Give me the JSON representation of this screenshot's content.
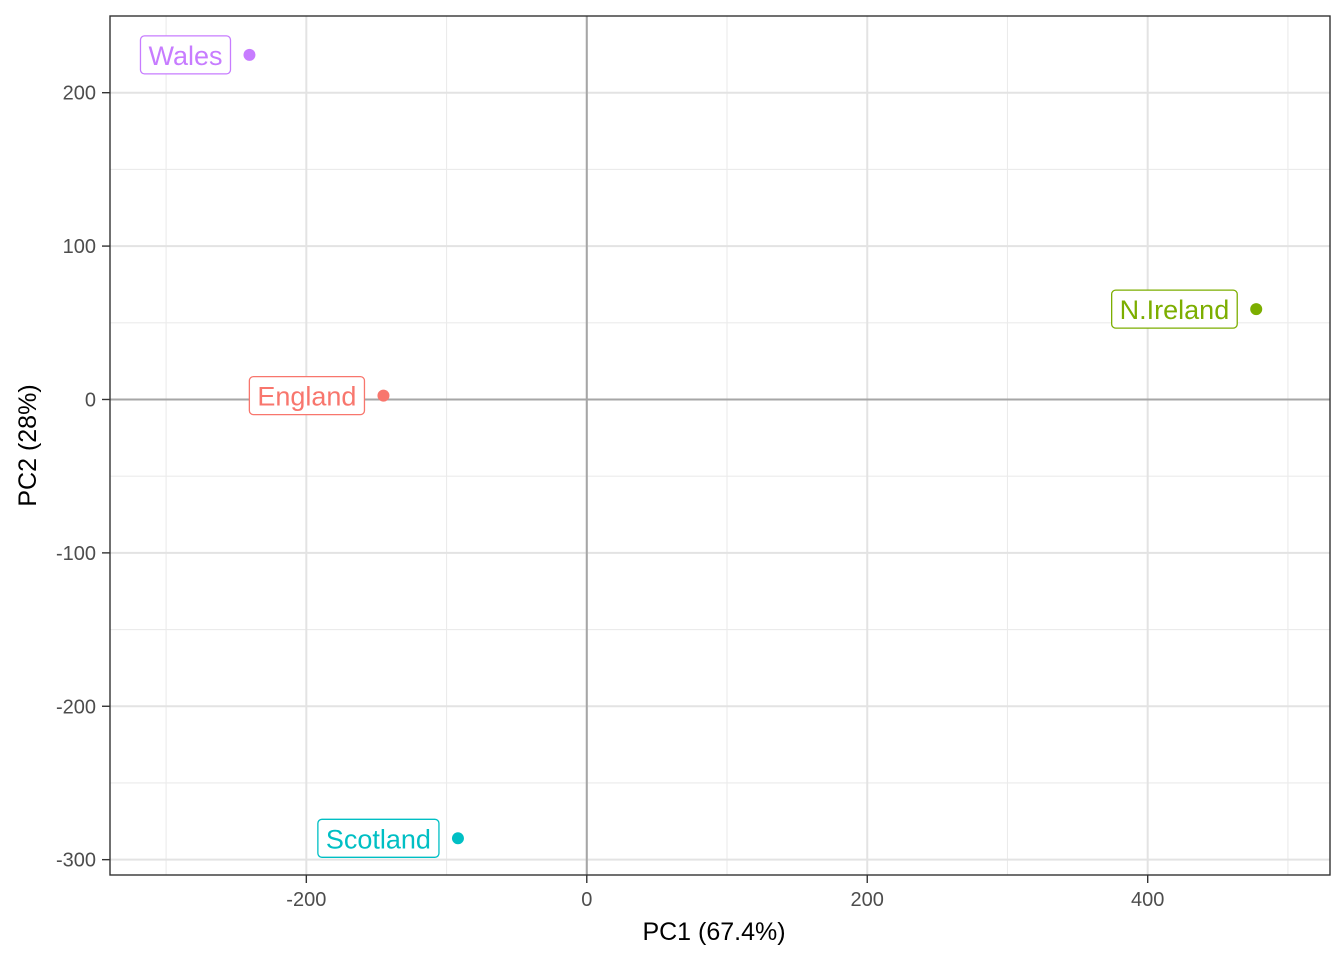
{
  "chart_data": {
    "type": "scatter",
    "xlabel": "PC1 (67.4%)",
    "ylabel": "PC2 (28%)",
    "xlim": [
      -340,
      530
    ],
    "ylim": [
      -310,
      250
    ],
    "x_ticks": [
      -200,
      0,
      200,
      400
    ],
    "y_ticks": [
      -300,
      -200,
      -100,
      0,
      100,
      200
    ],
    "x_tick_labels": [
      "-200",
      "0",
      "200",
      "400"
    ],
    "y_tick_labels": [
      "-300",
      "-200",
      "-100",
      "0",
      "100",
      "200"
    ],
    "grid": true,
    "reference_lines": {
      "x": 0,
      "y": 0
    },
    "points": [
      {
        "label": "England",
        "x": -144.99,
        "y": 2.53,
        "color": "#F8766D"
      },
      {
        "label": "N.Ireland",
        "x": 477.39,
        "y": 58.9,
        "color": "#7CAE00"
      },
      {
        "label": "Scotland",
        "x": -91.87,
        "y": -286.08,
        "color": "#00BFC4"
      },
      {
        "label": "Wales",
        "x": -240.53,
        "y": 224.65,
        "color": "#C77CFF"
      }
    ]
  }
}
